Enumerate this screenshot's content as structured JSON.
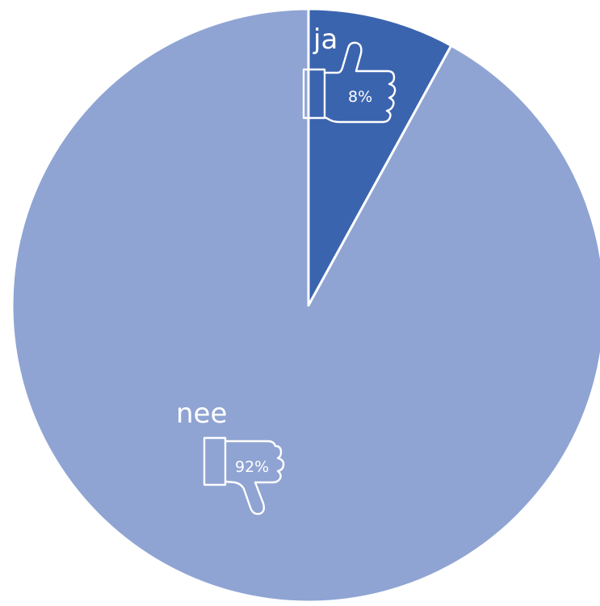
{
  "chart_data": {
    "type": "pie",
    "slices": [
      {
        "label": "ja",
        "value": 8,
        "value_label": "8%",
        "color": "#3B64AE",
        "icon": "thumbs-up-icon"
      },
      {
        "label": "nee",
        "value": 92,
        "value_label": "92%",
        "color": "#8FA4D3",
        "icon": "thumbs-down-icon"
      }
    ],
    "start": "top",
    "direction": "clockwise",
    "legend": "none"
  }
}
